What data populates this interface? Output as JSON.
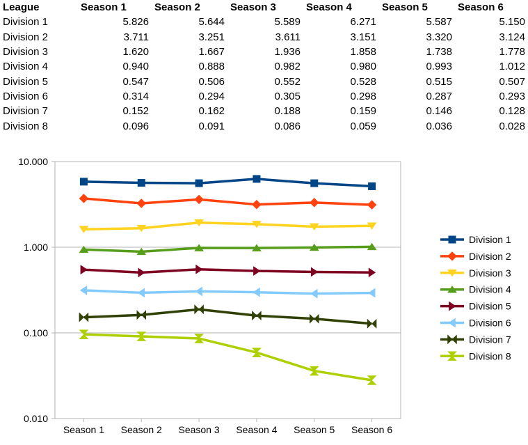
{
  "table": {
    "headers": [
      "League",
      "Season 1",
      "Season 2",
      "Season 3",
      "Season 4",
      "Season 5",
      "Season 6"
    ],
    "rows": [
      [
        "Division 1",
        "5.826",
        "5.644",
        "5.589",
        "6.271",
        "5.587",
        "5.150"
      ],
      [
        "Division 2",
        "3.711",
        "3.251",
        "3.611",
        "3.151",
        "3.320",
        "3.124"
      ],
      [
        "Division 3",
        "1.620",
        "1.667",
        "1.936",
        "1.858",
        "1.738",
        "1.778"
      ],
      [
        "Division 4",
        "0.940",
        "0.888",
        "0.982",
        "0.980",
        "0.993",
        "1.012"
      ],
      [
        "Division 5",
        "0.547",
        "0.506",
        "0.552",
        "0.528",
        "0.515",
        "0.507"
      ],
      [
        "Division 6",
        "0.314",
        "0.294",
        "0.305",
        "0.298",
        "0.287",
        "0.293"
      ],
      [
        "Division 7",
        "0.152",
        "0.162",
        "0.188",
        "0.159",
        "0.146",
        "0.128"
      ],
      [
        "Division 8",
        "0.096",
        "0.091",
        "0.086",
        "0.059",
        "0.036",
        "0.028"
      ]
    ]
  },
  "chart_data": {
    "type": "line",
    "yscale": "log",
    "ylim": [
      0.01,
      10
    ],
    "yticks": [
      "10.000",
      "1.000",
      "0.100",
      "0.010"
    ],
    "grid": true,
    "legend": "right",
    "categories": [
      "Season 1",
      "Season 2",
      "Season 3",
      "Season 4",
      "Season 5",
      "Season 6"
    ],
    "series": [
      {
        "name": "Division 1",
        "color": "#004586",
        "marker": "square",
        "values": [
          5.826,
          5.644,
          5.589,
          6.271,
          5.587,
          5.15
        ]
      },
      {
        "name": "Division 2",
        "color": "#ff420e",
        "marker": "diamond",
        "values": [
          3.711,
          3.251,
          3.611,
          3.151,
          3.32,
          3.124
        ]
      },
      {
        "name": "Division 3",
        "color": "#ffd320",
        "marker": "triangle-down",
        "values": [
          1.62,
          1.667,
          1.936,
          1.858,
          1.738,
          1.778
        ]
      },
      {
        "name": "Division 4",
        "color": "#579d1c",
        "marker": "triangle-up",
        "values": [
          0.94,
          0.888,
          0.982,
          0.98,
          0.993,
          1.012
        ]
      },
      {
        "name": "Division 5",
        "color": "#7e0021",
        "marker": "triangle-right",
        "values": [
          0.547,
          0.506,
          0.552,
          0.528,
          0.515,
          0.507
        ]
      },
      {
        "name": "Division 6",
        "color": "#83caff",
        "marker": "triangle-left",
        "values": [
          0.314,
          0.294,
          0.305,
          0.298,
          0.287,
          0.293
        ]
      },
      {
        "name": "Division 7",
        "color": "#314004",
        "marker": "bowtie",
        "values": [
          0.152,
          0.162,
          0.188,
          0.159,
          0.146,
          0.128
        ]
      },
      {
        "name": "Division 8",
        "color": "#aecf00",
        "marker": "hourglass",
        "values": [
          0.096,
          0.091,
          0.086,
          0.059,
          0.036,
          0.028
        ]
      }
    ]
  }
}
